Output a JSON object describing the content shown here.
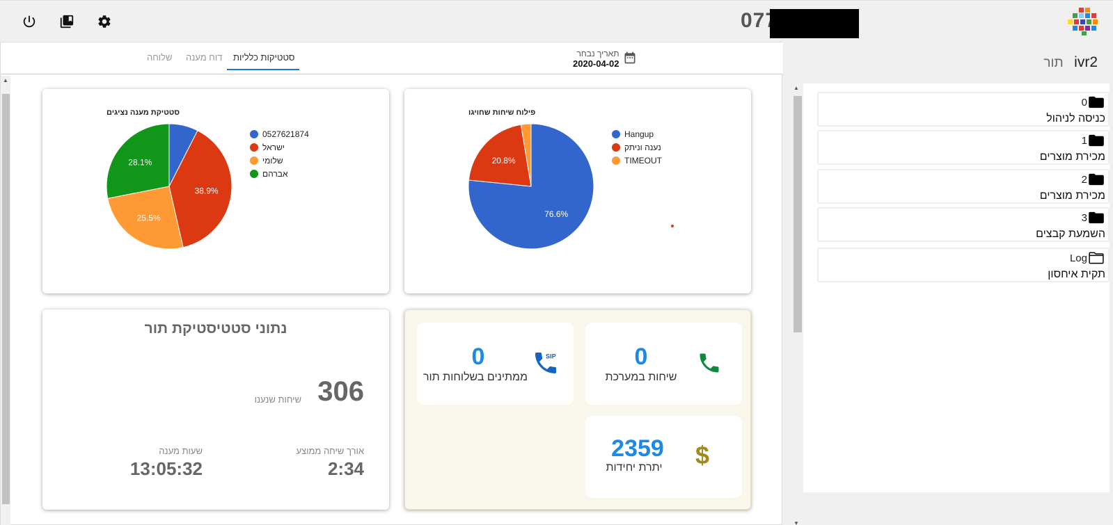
{
  "header": {
    "phone_prefix": "077",
    "icons": [
      "power-icon",
      "library-icon",
      "gear-icon"
    ]
  },
  "right_panel": {
    "title_main": "ivr2",
    "title_sub": "תור",
    "folders": [
      {
        "num": "0",
        "label": "כניסה לניהול",
        "icon": "folder-filled-icon"
      },
      {
        "num": "1",
        "label": "מכירת מוצרים",
        "icon": "folder-filled-icon"
      },
      {
        "num": "2",
        "label": "מכירת מוצרים",
        "icon": "folder-filled-icon"
      },
      {
        "num": "3",
        "label": "השמעת קבצים",
        "icon": "folder-filled-icon"
      },
      {
        "num": "Log",
        "label": "תקית איחסון",
        "icon": "folder-outline-icon"
      }
    ]
  },
  "tabs": [
    {
      "label": "סטטיקות כלליות",
      "active": true
    },
    {
      "label": "דוח מענה",
      "active": false
    },
    {
      "label": "שלוחה",
      "active": false
    }
  ],
  "date": {
    "label": "תאריך נבחר",
    "value": "2020-04-02"
  },
  "chart_data": [
    {
      "type": "pie",
      "title": "פילוח שיחות שחויגו",
      "categories": [
        "Hangup",
        "נענה וניתק",
        "TIMEOUT"
      ],
      "values": [
        76.6,
        20.8,
        2.6
      ],
      "data_labels": [
        "76.6%",
        "20.8%",
        ""
      ],
      "colors": [
        "#3366cc",
        "#dc3912",
        "#ff9933"
      ],
      "legend": "right"
    },
    {
      "type": "pie",
      "title": "סטטיקת מענה נציגים",
      "categories": [
        "0527621874",
        "ישראל",
        "שלומי",
        "אברהם"
      ],
      "values": [
        7.5,
        38.9,
        25.5,
        28.1
      ],
      "data_labels": [
        "",
        "38.9%",
        "25.5%",
        "28.1%"
      ],
      "colors": [
        "#3366cc",
        "#dc3912",
        "#ff9933",
        "#109618"
      ],
      "legend": "right"
    }
  ],
  "stats": {
    "title": "נתוני סטטיסטיקת תור",
    "answered_calls_value": "306",
    "answered_calls_label": "שיחות שנענו",
    "avg_length_label": "אורך שיחה ממוצע",
    "avg_length_value": "2:34",
    "answer_hours_label": "שעות מענה",
    "answer_hours_value": "13:05:32"
  },
  "live": {
    "calls_in_system_value": "0",
    "calls_in_system_label": "שיחות במערכת",
    "waiting_value": "0",
    "waiting_label": "ממתינים בשלוחות תור",
    "units_value": "2359",
    "units_label": "יתרת יחידות",
    "sip_text": "SIP",
    "dollar": "$",
    "colors": {
      "phone": "#0a8a3a",
      "sip": "#1565c0",
      "dollar": "#a08a1e",
      "value": "#1e88e5"
    }
  }
}
